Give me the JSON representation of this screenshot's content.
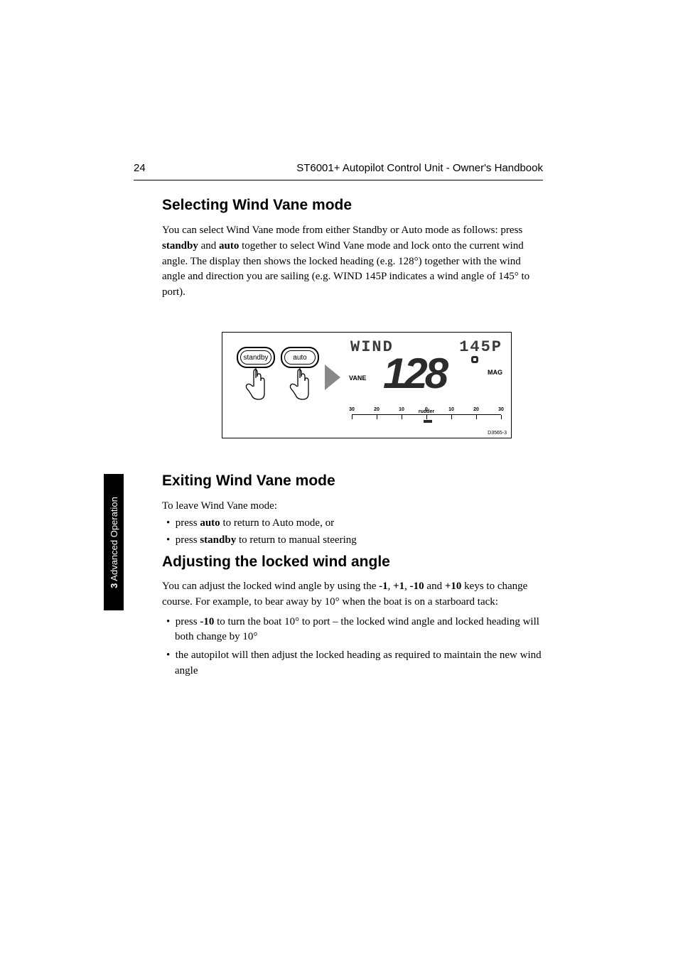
{
  "header": {
    "page_number": "24",
    "book_title": "ST6001+  Autopilot Control Unit - Owner's Handbook"
  },
  "side_tab": {
    "chapter_number": "3",
    "chapter_title": "Advanced Operation",
    "bg_color": "#000000",
    "text_color": "#ffffff"
  },
  "sections": {
    "selecting": {
      "title": "Selecting Wind Vane mode",
      "p1_pre": "You can select Wind Vane mode from either Standby or Auto mode as follows: press ",
      "kw_standby": "standby",
      "p1_mid1": " and ",
      "kw_auto": "auto",
      "p1_mid2": " together to select Wind Vane mode and lock onto the current wind angle. The display then shows the locked heading (e.g. ",
      "ex_heading": "128°",
      "p1_mid3": ") together with the wind angle and direction you are sailing (e.g. ",
      "ex_wind": "WIND 145P",
      "p1_end": " indicates a wind angle of 145° to port)."
    },
    "exiting": {
      "title": "Exiting Wind Vane mode",
      "p1_pre": "To leave Wind Vane mode:",
      "li1_pre": "press ",
      "li1_kw": "auto",
      "li1_post": " to return to Auto mode, or",
      "li2_pre": "press ",
      "li2_kw": "standby",
      "li2_post": " to return to manual steering"
    },
    "adjusting": {
      "title": "Adjusting the locked wind angle",
      "p1_pre": "You can adjust the locked wind angle by using the ",
      "kw_m1": "-1",
      "c1": ", ",
      "kw_p1": "+1",
      "c2": ", ",
      "kw_m10": "-10",
      "c3": " and ",
      "kw_p10": "+10",
      "p1_post": " keys to change course. For example, to bear away by 10° when the boat is on a starboard tack:",
      "li1_pre": "press ",
      "li1_kw": "-10",
      "li1_post": " to turn the boat 10° to port – the locked wind angle and locked heading will both change by 10°",
      "li2": "the autopilot will then adjust the locked heading as required to maintain the new wind angle"
    }
  },
  "diagram": {
    "btn_standby": "standby",
    "btn_auto": "auto",
    "lcd_top_left": "WIND",
    "lcd_top_right": "145P",
    "lcd_vane": "VANE",
    "lcd_big": "128",
    "lcd_mag": "MAG",
    "rudder_label": "rudder",
    "rudder_ticks": [
      "30",
      "20",
      "10",
      "0",
      "10",
      "20",
      "30"
    ],
    "code": "D3565-3",
    "arrow_color": "#8a8a8a",
    "lcd_text_color": "#2b2b2b"
  },
  "typography": {
    "heading_fontsize": 21,
    "body_fontsize": 15,
    "header_fontsize": 15,
    "body_color": "#000000"
  }
}
